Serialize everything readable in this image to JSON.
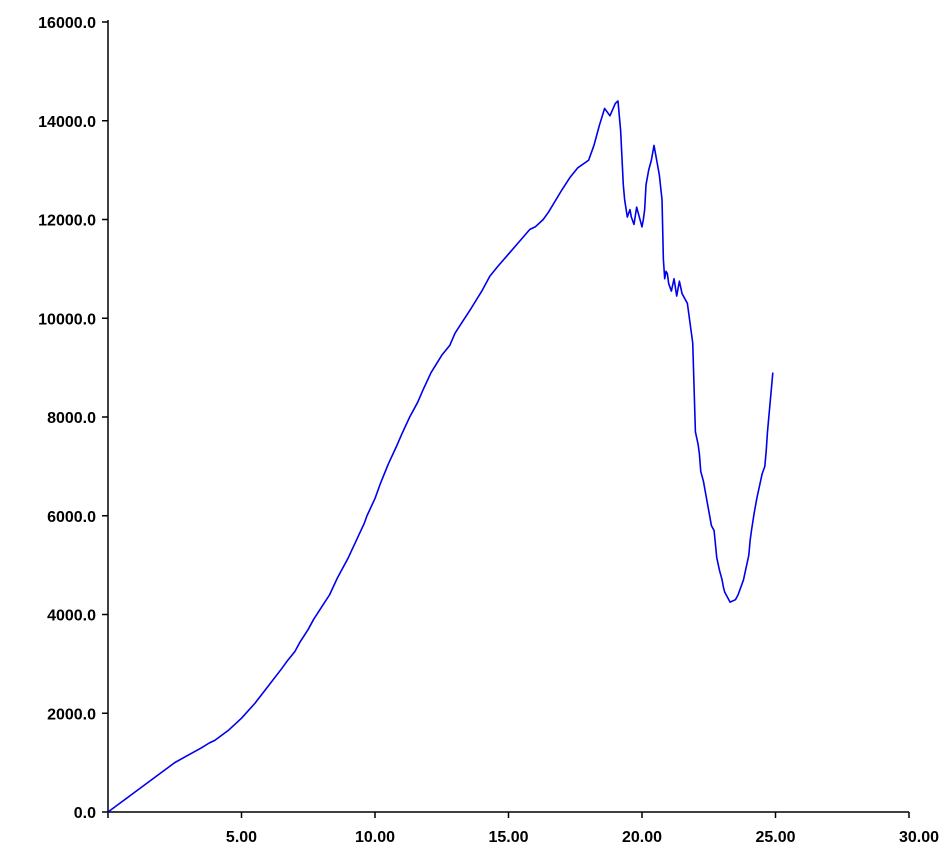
{
  "colors": {
    "series": "#0000ee",
    "axis": "#000000",
    "background": "#ffffff"
  },
  "chart_data": {
    "type": "line",
    "title": "",
    "xlabel": "",
    "ylabel": "",
    "xlim": [
      0,
      30
    ],
    "ylim": [
      0,
      16000
    ],
    "grid": false,
    "legend": "none",
    "x_ticks": [
      0,
      5,
      10,
      15,
      20,
      25,
      30
    ],
    "x_tick_labels": [
      "",
      "5.00",
      "10.00",
      "15.00",
      "20.00",
      "25.00",
      "30.00"
    ],
    "y_ticks": [
      0,
      2000,
      4000,
      6000,
      8000,
      10000,
      12000,
      14000,
      16000
    ],
    "y_tick_labels": [
      "0.0",
      "2000.0",
      "4000.0",
      "6000.0",
      "8000.0",
      "10000.0",
      "12000.0",
      "14000.0",
      "16000.0"
    ],
    "series": [
      {
        "x": [
          0,
          0.5,
          1.0,
          1.5,
          2.0,
          2.5,
          3.0,
          3.5,
          3.8,
          4.0,
          4.5,
          5.0,
          5.5,
          6.0,
          6.5,
          6.7,
          7.0,
          7.2,
          7.5,
          7.7,
          8.0,
          8.3,
          8.6,
          9.0,
          9.3,
          9.6,
          9.7,
          10.0,
          10.2,
          10.5,
          10.8,
          11.0,
          11.3,
          11.6,
          11.8,
          12.1,
          12.5,
          12.8,
          13.0,
          13.3,
          13.6,
          14.0,
          14.3,
          14.6,
          15.0,
          15.4,
          15.8,
          16.0,
          16.3,
          16.5,
          17.0,
          17.3,
          17.6,
          18.0,
          18.2,
          18.4,
          18.6,
          18.8,
          19.0,
          19.1,
          19.2,
          19.3,
          19.35,
          19.45,
          19.55,
          19.6,
          19.7,
          19.8,
          19.9,
          20.0,
          20.05,
          20.1,
          20.15,
          20.25,
          20.35,
          20.45,
          20.55,
          20.65,
          20.75,
          20.8,
          20.85,
          20.9,
          20.95,
          21.0,
          21.1,
          21.2,
          21.3,
          21.4,
          21.5,
          21.6,
          21.7,
          21.8,
          21.9,
          22.0,
          22.1,
          22.15,
          22.2,
          22.3,
          22.4,
          22.5,
          22.6,
          22.7,
          22.8,
          22.9,
          23.0,
          23.05,
          23.1,
          23.3,
          23.5,
          23.55,
          23.6,
          23.8,
          23.9,
          24.0,
          24.05,
          24.1,
          24.2,
          24.3,
          24.4,
          24.5,
          24.6,
          24.65,
          24.7,
          24.75,
          24.8,
          24.85,
          24.9
        ],
        "values": [
          0,
          200,
          400,
          600,
          800,
          1000,
          1150,
          1300,
          1400,
          1450,
          1650,
          1900,
          2200,
          2550,
          2900,
          3050,
          3250,
          3450,
          3700,
          3900,
          4150,
          4400,
          4750,
          5150,
          5500,
          5850,
          6000,
          6350,
          6650,
          7050,
          7400,
          7650,
          8000,
          8300,
          8550,
          8900,
          9250,
          9450,
          9700,
          9950,
          10200,
          10550,
          10850,
          11050,
          11300,
          11550,
          11800,
          11850,
          12000,
          12150,
          12600,
          12850,
          13050,
          13200,
          13500,
          13900,
          14250,
          14100,
          14350,
          14400,
          13800,
          12700,
          12400,
          12050,
          12200,
          12050,
          11900,
          12250,
          12050,
          11850,
          12000,
          12200,
          12700,
          13000,
          13200,
          13500,
          13200,
          12900,
          12400,
          11200,
          10800,
          10950,
          10900,
          10700,
          10550,
          10800,
          10450,
          10750,
          10500,
          10400,
          10300,
          9900,
          9500,
          7700,
          7450,
          7250,
          6900,
          6700,
          6400,
          6100,
          5800,
          5700,
          5150,
          4900,
          4700,
          4550,
          4450,
          4250,
          4300,
          4350,
          4400,
          4700,
          4950,
          5200,
          5500,
          5700,
          6050,
          6350,
          6600,
          6850,
          7000,
          7300,
          7700,
          8000,
          8300,
          8600,
          8900
        ]
      }
    ]
  }
}
